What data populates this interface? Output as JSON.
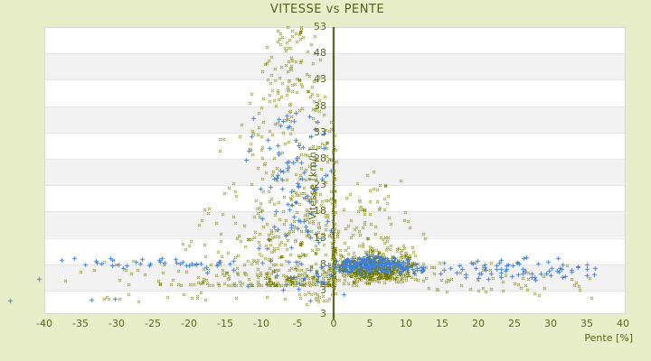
{
  "window": {
    "kind": "chart-image"
  },
  "chart_data": {
    "type": "scatter",
    "title": "VITESSE vs PENTE",
    "xlabel": "Pente [%]",
    "ylabel": "Vitesse [km/h]",
    "x_ticks": [
      -40,
      -35,
      -30,
      -25,
      -20,
      -15,
      -10,
      -5,
      0,
      5,
      10,
      15,
      20,
      25,
      30,
      35,
      40
    ],
    "y_ticks": [
      3,
      8,
      13,
      18,
      23,
      28,
      33,
      38,
      43,
      48,
      53
    ],
    "y_edge_label": "3",
    "xlim": [
      -40,
      40.375
    ],
    "ylim": [
      -1.45,
      53
    ],
    "grid": "horizontal-bands-alternating",
    "legend": "none",
    "zero_axis_line": {
      "x": 0,
      "color": "#47520c"
    },
    "band_colors": {
      "even": "#f2f2f2",
      "odd": "#ffffff"
    },
    "seed": 42,
    "series": [
      {
        "name": "vitesse-olive",
        "marker": "diamond",
        "color": "#6e7205",
        "color_center": "#b2bc00",
        "clusters": [
          {
            "type": "plume",
            "n": 620,
            "v_min": 4,
            "v_max": 53,
            "v_exp": 2.2,
            "p_center": -6,
            "spread_low": 20,
            "spread_high": 3,
            "p_reflect": 0.5
          },
          {
            "type": "gauss",
            "n": 18,
            "p_mean": -27,
            "p_sd": 5,
            "v_mean": 6.5,
            "v_sd": 1.8,
            "p_clip": [
              -38,
              -18
            ],
            "v_clip": [
              3.5,
              11
            ]
          },
          {
            "type": "gauss",
            "n": 70,
            "p_mean": 0,
            "p_sd": 0.15,
            "v_mean": 7,
            "v_sd": 3.5,
            "p_clip": [
              -0.4,
              0.4
            ],
            "v_clip": [
              3,
              16
            ]
          },
          {
            "type": "gauss",
            "n": 20,
            "p_mean": 0,
            "p_sd": 0.12,
            "v_mean": 21,
            "v_sd": 6,
            "p_clip": [
              -0.3,
              0.3
            ],
            "v_clip": [
              15,
              33
            ]
          },
          {
            "type": "gauss",
            "n": 650,
            "p_mean": 5.5,
            "p_sd": 2.6,
            "v_mean": 7.2,
            "v_sd": 1.2,
            "p_clip": [
              0.5,
              13
            ],
            "v_clip": [
              4.3,
              10.5
            ]
          },
          {
            "type": "gauss",
            "n": 130,
            "p_mean": 6,
            "p_sd": 3.5,
            "v_mean": 9,
            "v_sd": 2.5,
            "p_clip": [
              0.3,
              15
            ],
            "v_clip": [
              3.2,
              16
            ]
          },
          {
            "type": "gauss",
            "n": 55,
            "p_mean": 5.5,
            "p_sd": 2.5,
            "v_mean": 16,
            "v_sd": 4.5,
            "p_clip": [
              0.5,
              12
            ],
            "v_clip": [
              10,
              36
            ]
          },
          {
            "type": "uniform",
            "n": 40,
            "p_range": [
              12,
              27
            ],
            "v_range": [
              2.8,
              8.5
            ]
          },
          {
            "type": "uniform",
            "n": 9,
            "p_range": [
              27,
              36.5
            ],
            "v_range": [
              3,
              8
            ]
          },
          {
            "type": "uniform",
            "n": 16,
            "p_range": [
              -32,
              -0.5
            ],
            "v_range": [
              0.8,
              2.6
            ]
          },
          {
            "type": "gauss",
            "n": 18,
            "p_mean": -1.5,
            "p_sd": 2.5,
            "v_mean": 1.8,
            "v_sd": 0.8,
            "p_clip": [
              -9,
              0.3
            ],
            "v_clip": [
              0.2,
              2.9
            ]
          },
          {
            "type": "uniform",
            "n": 8,
            "p_range": [
              20,
              36
            ],
            "v_range": [
              1.5,
              4
            ]
          }
        ],
        "points": [
          [
            -31.8,
            1.4
          ],
          [
            -31.1,
            1.5
          ]
        ]
      },
      {
        "name": "vitesse-blue",
        "marker": "plus",
        "color": "#4181d8",
        "clusters": [
          {
            "type": "gauss",
            "n": 40,
            "p_mean": -22,
            "p_sd": 9,
            "v_mean": 8.2,
            "v_sd": 0.5,
            "p_clip": [
              -41,
              -4
            ],
            "v_clip": [
              6.8,
              9.5
            ]
          },
          {
            "type": "gauss",
            "n": 85,
            "p_mean": -5.5,
            "p_sd": 3.2,
            "v_mean": 24,
            "v_sd": 8.5,
            "p_clip": [
              -14,
              0.2
            ],
            "v_clip": [
              9,
              38.5
            ]
          },
          {
            "type": "gauss",
            "n": 25,
            "p_mean": -6,
            "p_sd": 4.5,
            "v_mean": 6,
            "v_sd": 2,
            "p_clip": [
              -18,
              0.2
            ],
            "v_clip": [
              3,
              10
            ]
          },
          {
            "type": "gauss",
            "n": 210,
            "p_mean": 5.5,
            "p_sd": 3.2,
            "v_mean": 7.9,
            "v_sd": 0.75,
            "p_clip": [
              0.2,
              14.5
            ],
            "v_clip": [
              5.8,
              10
            ]
          },
          {
            "type": "gauss",
            "n": 70,
            "p_mean": 24,
            "p_sd": 6.5,
            "v_mean": 7.2,
            "v_sd": 0.95,
            "p_clip": [
              14.5,
              37
            ],
            "v_clip": [
              4.8,
              9.5
            ]
          }
        ],
        "points": [
          [
            -44.8,
            1.2
          ],
          [
            -40.7,
            5.3
          ],
          [
            -33.5,
            1.3
          ],
          [
            -30.3,
            1.5
          ],
          [
            -3.2,
            1.1
          ],
          [
            1.4,
            2.4
          ]
        ]
      }
    ]
  },
  "colors": {
    "background": "#e8edca",
    "text": "#5d681c",
    "plot_background": "#ffffff",
    "band_gray": "#f2f2f2",
    "grid_line": "#e4e4e4",
    "plot_border": "#d6d6d6",
    "axis_line": "#47520c"
  }
}
